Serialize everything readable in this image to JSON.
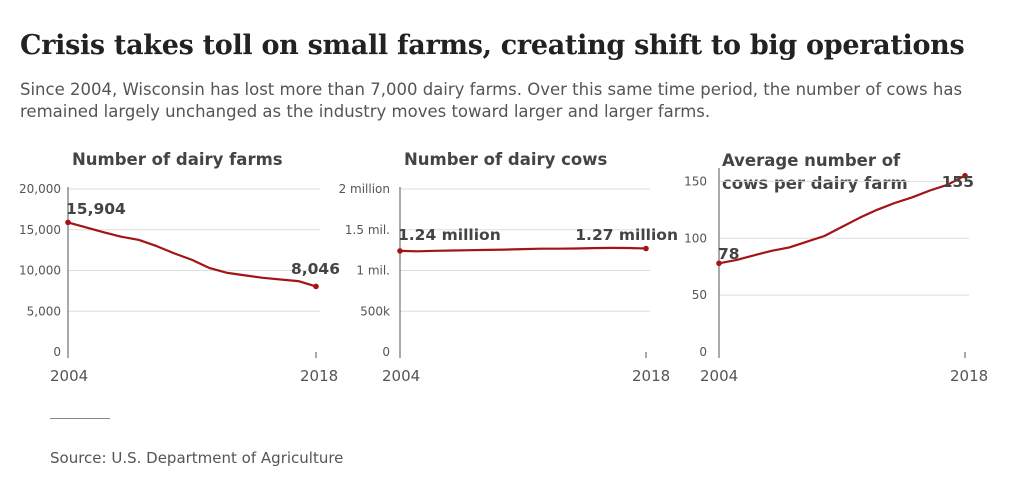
{
  "title": "Crisis takes toll on small farms, creating shift to big operations",
  "subtitle": "Since 2004, Wisconsin has lost more than 7,000 dairy farms. Over this same time period, the number of cows has remained largely unchanged as the industry moves toward larger and larger farms.",
  "source": "Source: U.S. Department of Agriculture",
  "colors": {
    "line": "#a31515",
    "grid": "#dddddd",
    "axis": "#555555",
    "text": "#555555",
    "label": "#444444"
  },
  "chart_data": [
    {
      "type": "line",
      "title": [
        "Number of dairy farms"
      ],
      "x": [
        2004,
        2005,
        2006,
        2007,
        2008,
        2009,
        2010,
        2011,
        2012,
        2013,
        2014,
        2015,
        2016,
        2017,
        2018
      ],
      "y": [
        15904,
        15300,
        14700,
        14150,
        13750,
        13000,
        12100,
        11300,
        10300,
        9700,
        9400,
        9100,
        8900,
        8700,
        8046
      ],
      "ylim": [
        0,
        20000
      ],
      "yticks": [
        0,
        5000,
        10000,
        15000,
        20000
      ],
      "ytick_labels": [
        "0",
        "5,000",
        "10,000",
        "15,000",
        "20,000"
      ],
      "xtick_labels": [
        "2004",
        "2018"
      ],
      "start_label": "15,904",
      "end_label": "8,046"
    },
    {
      "type": "line",
      "title": [
        "Number of dairy cows"
      ],
      "x": [
        2004,
        2005,
        2006,
        2007,
        2008,
        2009,
        2010,
        2011,
        2012,
        2013,
        2014,
        2015,
        2016,
        2017,
        2018
      ],
      "y": [
        1240000,
        1236000,
        1242000,
        1245000,
        1249000,
        1253000,
        1257000,
        1262000,
        1268000,
        1268000,
        1270000,
        1275000,
        1277000,
        1276000,
        1270000
      ],
      "ylim": [
        0,
        2000000
      ],
      "yticks": [
        0,
        500000,
        1000000,
        1500000,
        2000000
      ],
      "ytick_labels": [
        "0",
        "500k",
        "1 mil.",
        "1.5 mil.",
        "2 million"
      ],
      "xtick_labels": [
        "2004",
        "2018"
      ],
      "start_label": "1.24 million",
      "end_label": "1.27 million"
    },
    {
      "type": "line",
      "title": [
        "Average number of",
        "cows per dairy farm"
      ],
      "x": [
        2004,
        2005,
        2006,
        2007,
        2008,
        2009,
        2010,
        2011,
        2012,
        2013,
        2014,
        2015,
        2016,
        2017,
        2018
      ],
      "y": [
        78,
        81,
        85,
        89,
        92,
        97,
        102,
        110,
        118,
        125,
        131,
        136,
        142,
        147,
        155
      ],
      "ylim": [
        0,
        160
      ],
      "yticks": [
        0,
        50,
        100,
        150
      ],
      "ytick_labels": [
        "0",
        "50",
        "100",
        "150"
      ],
      "xtick_labels": [
        "2004",
        "2018"
      ],
      "start_label": "78",
      "end_label": "155"
    }
  ]
}
